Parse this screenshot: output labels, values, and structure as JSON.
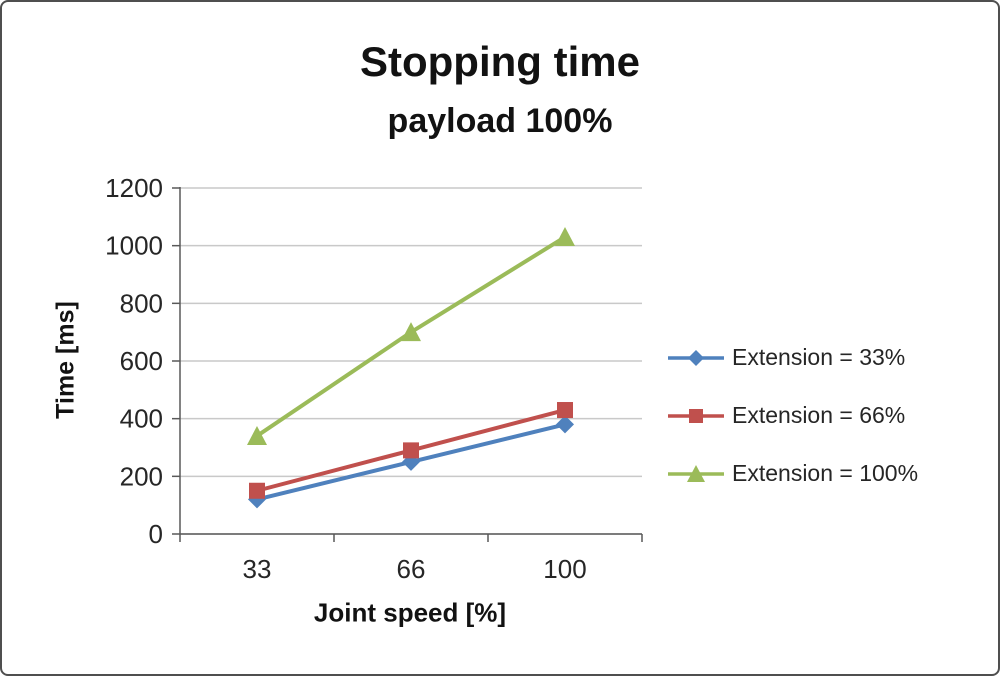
{
  "chart_data": {
    "type": "line",
    "title": "Stopping time",
    "subtitle": "payload 100%",
    "xlabel": "Joint speed [%]",
    "ylabel": "Time [ms]",
    "categories": [
      "33",
      "66",
      "100"
    ],
    "ylim": [
      0,
      1200
    ],
    "ytick_step": 200,
    "grid": true,
    "legend_position": "right",
    "style": {
      "grid_color": "#c9c9c9",
      "axis_color": "#595959",
      "text_color": "#262626"
    },
    "series": [
      {
        "name": "Extension = 33%",
        "marker": "diamond",
        "color": "#4f81bd",
        "values": [
          120,
          250,
          380
        ]
      },
      {
        "name": "Extension = 66%",
        "marker": "square",
        "color": "#c0504d",
        "values": [
          150,
          290,
          430
        ]
      },
      {
        "name": "Extension = 100%",
        "marker": "triangle",
        "color": "#9bbb59",
        "values": [
          340,
          700,
          1030
        ]
      }
    ]
  }
}
